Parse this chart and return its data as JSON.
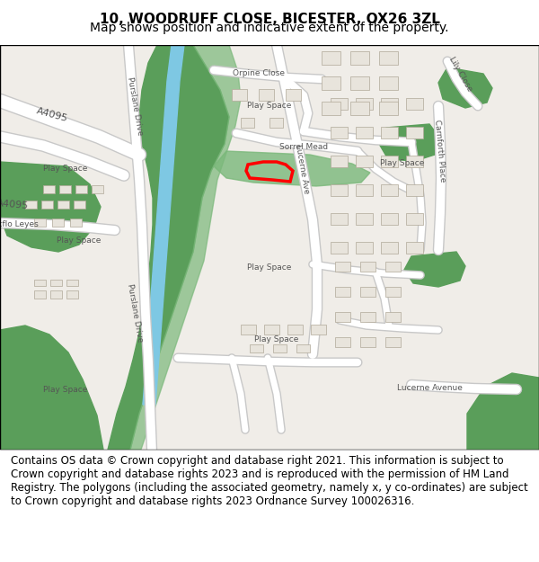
{
  "title_line1": "10, WOODRUFF CLOSE, BICESTER, OX26 3ZL",
  "title_line2": "Map shows position and indicative extent of the property.",
  "title_fontsize": 11,
  "subtitle_fontsize": 10,
  "footer_text": "Contains OS data © Crown copyright and database right 2021. This information is subject to Crown copyright and database rights 2023 and is reproduced with the permission of HM Land Registry. The polygons (including the associated geometry, namely x, y co-ordinates) are subject to Crown copyright and database rights 2023 Ordnance Survey 100026316.",
  "footer_fontsize": 8.5,
  "map_bg": "#f0ede8",
  "road_color": "#ffffff",
  "road_outline": "#c8c8c8",
  "green_dark": "#5a9e5a",
  "green_light": "#a8d4a8",
  "green_medium": "#7ab87a",
  "river_color": "#7ec8e3",
  "building_color": "#e8e4dc",
  "building_outline": "#b0a898",
  "plot_color": "#ff0000",
  "title_color": "#000000",
  "footer_color": "#000000",
  "border_color": "#000000",
  "header_bg": "#ffffff",
  "footer_bg": "#ffffff"
}
